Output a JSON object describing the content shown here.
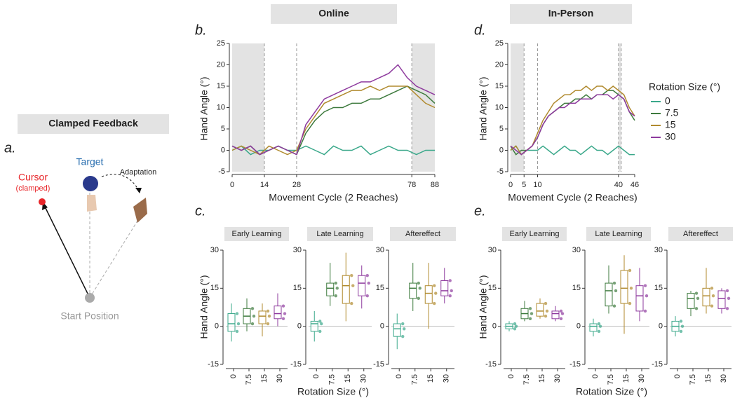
{
  "figure": {
    "header_online": "Online",
    "header_inperson": "In-Person",
    "panel_a": "a.",
    "clamped_title": "Clamped Feedback",
    "cursor": "Cursor",
    "clamped": "(clamped)",
    "target": "Target",
    "adaptation": "Adaptation",
    "start": "Start Position",
    "xlabel_c": "Rotation Size (°)",
    "xlabel_e": "Rotation Size (°)"
  },
  "chart_data": [
    {
      "type": "line",
      "label": "b.",
      "xlabel": "Movement Cycle (2 Reaches)",
      "ylabel": "Hand Angle (°)",
      "xlim": [
        0,
        88
      ],
      "ylim": [
        -5,
        25
      ],
      "xticks": [
        0,
        14,
        28,
        78,
        88
      ],
      "yticks": [
        -5,
        0,
        5,
        10,
        15,
        20,
        25
      ],
      "shaded": [
        [
          0,
          14
        ],
        [
          78,
          88
        ]
      ],
      "dashed": [
        14,
        28,
        78
      ],
      "x": [
        0,
        4,
        8,
        12,
        16,
        20,
        24,
        28,
        32,
        36,
        40,
        44,
        48,
        52,
        56,
        60,
        64,
        68,
        72,
        76,
        80,
        84,
        88
      ],
      "series": [
        {
          "color": "#3aa88a",
          "values": [
            0,
            1,
            -1,
            0,
            0,
            1,
            0,
            0,
            1,
            0,
            -1,
            1,
            0,
            0,
            1,
            -1,
            0,
            1,
            0,
            0,
            -1,
            0,
            0
          ]
        },
        {
          "color": "#3d7a3d",
          "values": [
            1,
            0,
            1,
            -1,
            0,
            1,
            0,
            -1,
            4,
            7,
            9,
            10,
            10,
            11,
            11,
            12,
            12,
            13,
            14,
            15,
            14,
            13,
            11
          ]
        },
        {
          "color": "#b08a2e",
          "values": [
            0,
            1,
            0,
            -1,
            1,
            0,
            -1,
            0,
            5,
            8,
            11,
            12,
            13,
            14,
            14,
            15,
            14,
            15,
            15,
            15,
            13,
            11,
            10
          ]
        },
        {
          "color": "#8e3a9e",
          "values": [
            1,
            0,
            1,
            -1,
            0,
            1,
            0,
            -1,
            6,
            9,
            12,
            13,
            14,
            15,
            16,
            16,
            17,
            18,
            20,
            17,
            15,
            14,
            13
          ]
        }
      ]
    },
    {
      "type": "line",
      "label": "d.",
      "xlabel": "Movement Cycle (2 Reaches)",
      "ylabel": "Hand Angle (°)",
      "xlim": [
        0,
        46
      ],
      "ylim": [
        -5,
        25
      ],
      "xticks": [
        0,
        5,
        10,
        40,
        46
      ],
      "yticks": [
        -5,
        0,
        5,
        10,
        15,
        20,
        25
      ],
      "shaded": [
        [
          0,
          5
        ],
        [
          40,
          41
        ]
      ],
      "dashed": [
        5,
        10,
        40,
        41
      ],
      "legend_title": "Rotation Size (°)",
      "x": [
        0,
        2,
        4,
        6,
        8,
        10,
        12,
        14,
        16,
        18,
        20,
        22,
        24,
        26,
        28,
        30,
        32,
        34,
        36,
        38,
        40,
        42,
        44,
        46
      ],
      "series": [
        {
          "name": "0",
          "color": "#3aa88a",
          "values": [
            0,
            1,
            -1,
            0,
            0,
            0,
            1,
            0,
            -1,
            0,
            1,
            0,
            0,
            -1,
            0,
            1,
            0,
            0,
            -1,
            0,
            1,
            0,
            -1,
            -1
          ]
        },
        {
          "name": "7.5",
          "color": "#3d7a3d",
          "values": [
            1,
            -1,
            0,
            0,
            1,
            3,
            6,
            8,
            9,
            10,
            11,
            11,
            12,
            12,
            13,
            12,
            13,
            13,
            14,
            14,
            13,
            12,
            9,
            7
          ]
        },
        {
          "name": "15",
          "color": "#b08a2e",
          "values": [
            0,
            1,
            -1,
            0,
            1,
            4,
            7,
            9,
            11,
            12,
            13,
            13,
            14,
            14,
            15,
            14,
            15,
            15,
            14,
            15,
            14,
            13,
            10,
            8
          ]
        },
        {
          "name": "30",
          "color": "#8e3a9e",
          "values": [
            1,
            0,
            -1,
            0,
            1,
            3,
            6,
            8,
            9,
            10,
            10,
            11,
            11,
            12,
            12,
            12,
            13,
            13,
            13,
            12,
            13,
            12,
            9,
            8
          ]
        }
      ]
    },
    {
      "type": "box",
      "label": "c.",
      "title": "Early Learning",
      "ylabel": "Hand Angle (°)",
      "ylim": [
        -15,
        30
      ],
      "yticks": [
        -15,
        0,
        15,
        30
      ],
      "categories": [
        "0",
        "7.5",
        "15",
        "30"
      ],
      "colors": [
        "#3aa88a",
        "#3d7a3d",
        "#b08a2e",
        "#8e3a9e"
      ],
      "boxes": [
        [
          -6,
          -2,
          1,
          5,
          9
        ],
        [
          -2,
          1,
          4,
          7,
          11
        ],
        [
          -4,
          1,
          4,
          6,
          9
        ],
        [
          0,
          3,
          5,
          8,
          13
        ]
      ]
    },
    {
      "type": "box",
      "title": "Late Learning",
      "ylim": [
        -15,
        30
      ],
      "yticks": [
        -15,
        0,
        15,
        30
      ],
      "categories": [
        "0",
        "7.5",
        "15",
        "30"
      ],
      "colors": [
        "#3aa88a",
        "#3d7a3d",
        "#b08a2e",
        "#8e3a9e"
      ],
      "boxes": [
        [
          -6,
          -2,
          1,
          2,
          6
        ],
        [
          8,
          12,
          15,
          17,
          25
        ],
        [
          2,
          9,
          16,
          20,
          29
        ],
        [
          7,
          12,
          17,
          20,
          24
        ]
      ]
    },
    {
      "type": "box",
      "title": "Aftereffect",
      "ylim": [
        -15,
        30
      ],
      "yticks": [
        -15,
        0,
        15,
        30
      ],
      "categories": [
        "0",
        "7.5",
        "15",
        "30"
      ],
      "colors": [
        "#3aa88a",
        "#3d7a3d",
        "#b08a2e",
        "#8e3a9e"
      ],
      "boxes": [
        [
          -9,
          -4,
          -1,
          1,
          5
        ],
        [
          6,
          11,
          15,
          17,
          25
        ],
        [
          -1,
          9,
          13,
          16,
          25
        ],
        [
          9,
          12,
          14,
          18,
          23
        ]
      ]
    },
    {
      "type": "box",
      "label": "e.",
      "title": "Early Learning",
      "ylabel": "Hand Angle (°)",
      "ylim": [
        -15,
        30
      ],
      "yticks": [
        -15,
        0,
        15,
        30
      ],
      "categories": [
        "0",
        "7.5",
        "15",
        "30"
      ],
      "colors": [
        "#3aa88a",
        "#3d7a3d",
        "#b08a2e",
        "#8e3a9e"
      ],
      "boxes": [
        [
          -2,
          -1,
          0,
          1,
          2
        ],
        [
          2,
          3,
          5,
          7,
          10
        ],
        [
          3,
          4,
          6,
          9,
          11
        ],
        [
          2,
          3,
          5,
          6,
          8
        ]
      ]
    },
    {
      "type": "box",
      "title": "Late Learning",
      "ylim": [
        -15,
        30
      ],
      "yticks": [
        -15,
        0,
        15,
        30
      ],
      "categories": [
        "0",
        "7.5",
        "15",
        "30"
      ],
      "colors": [
        "#3aa88a",
        "#3d7a3d",
        "#b08a2e",
        "#8e3a9e"
      ],
      "boxes": [
        [
          -4,
          -2,
          0,
          1,
          3
        ],
        [
          5,
          8,
          14,
          17,
          24
        ],
        [
          -3,
          9,
          15,
          22,
          28
        ],
        [
          2,
          6,
          12,
          16,
          23
        ]
      ]
    },
    {
      "type": "box",
      "title": "Aftereffect",
      "ylim": [
        -15,
        30
      ],
      "yticks": [
        -15,
        0,
        15,
        30
      ],
      "categories": [
        "0",
        "7.5",
        "15",
        "30"
      ],
      "colors": [
        "#3aa88a",
        "#3d7a3d",
        "#b08a2e",
        "#8e3a9e"
      ],
      "boxes": [
        [
          -4,
          -2,
          0,
          2,
          4
        ],
        [
          4,
          7,
          11,
          13,
          14
        ],
        [
          5,
          8,
          12,
          15,
          23
        ],
        [
          5,
          7,
          11,
          14,
          15
        ]
      ]
    }
  ]
}
